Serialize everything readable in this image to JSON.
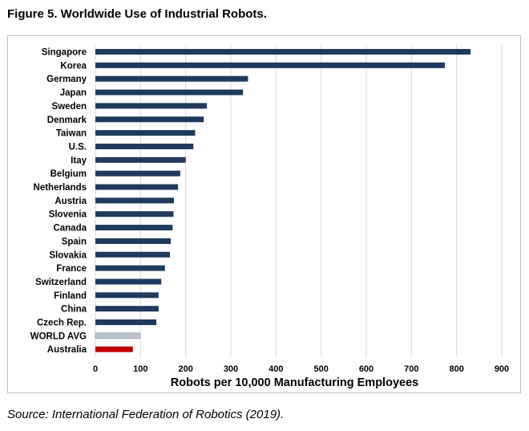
{
  "figure_title": "Figure 5. Worldwide Use of Industrial Robots.",
  "source": "Source: International Federation of Robotics (2019).",
  "colors": {
    "default_bar": "#1f3a5f",
    "world_avg_bar": "#bcc3cc",
    "highlight_bar": "#c00000",
    "grid": "#d9d9d9"
  },
  "chart_data": {
    "type": "bar",
    "orientation": "horizontal",
    "xlabel": "Robots per 10,000 Manufacturing Employees",
    "ylabel": "",
    "xlim": [
      0,
      900
    ],
    "xticks": [
      0,
      100,
      200,
      300,
      400,
      500,
      600,
      700,
      800,
      900
    ],
    "grid": "vertical",
    "categories": [
      "Singapore",
      "Korea",
      "Germany",
      "Japan",
      "Sweden",
      "Denmark",
      "Taiwan",
      "U.S.",
      "Itay",
      "Belgium",
      "Netherlands",
      "Austria",
      "Slovenia",
      "Canada",
      "Spain",
      "Slovakia",
      "France",
      "Switzerland",
      "Finland",
      "China",
      "Czech Rep.",
      "WORLD AVG",
      "Australia"
    ],
    "values": [
      831,
      774,
      338,
      327,
      247,
      240,
      221,
      217,
      200,
      188,
      183,
      174,
      173,
      171,
      167,
      165,
      154,
      146,
      140,
      140,
      135,
      99,
      83
    ],
    "bar_styles": [
      "default",
      "default",
      "default",
      "default",
      "default",
      "default",
      "default",
      "default",
      "default",
      "default",
      "default",
      "default",
      "default",
      "default",
      "default",
      "default",
      "default",
      "default",
      "default",
      "default",
      "default",
      "world_avg",
      "highlight"
    ]
  }
}
